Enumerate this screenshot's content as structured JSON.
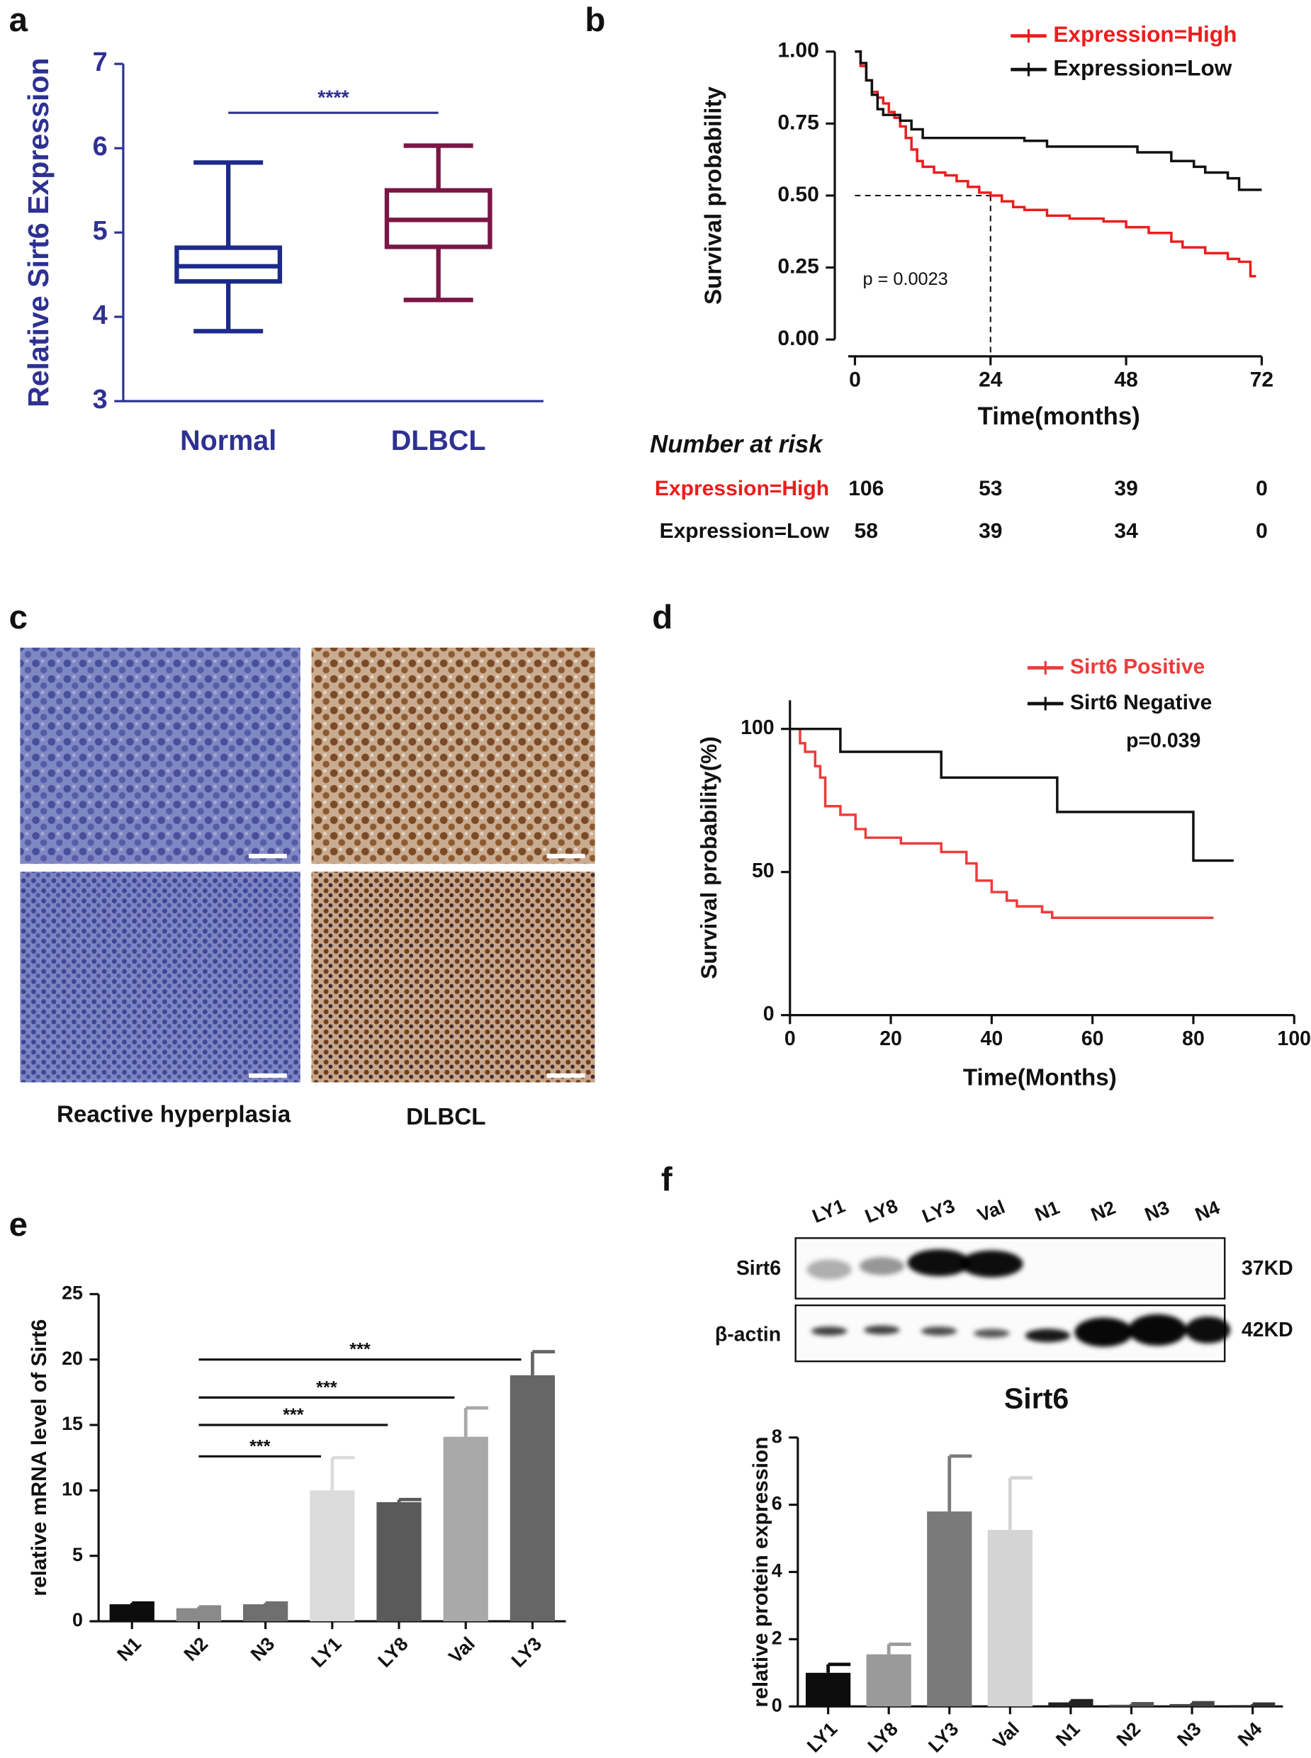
{
  "panel_labels": [
    "a",
    "b",
    "c",
    "d",
    "e",
    "f"
  ],
  "histology": {
    "labels": [
      "Reactive hyperplasia",
      "DLBCL"
    ]
  },
  "western_blot": {
    "lanes": [
      "LY1",
      "LY8",
      "LY3",
      "Val",
      "N1",
      "N2",
      "N3",
      "N4"
    ],
    "rows": [
      "Sirt6",
      "β-actin"
    ],
    "sizes": [
      "37KD",
      "42KD"
    ]
  },
  "chart_data": [
    {
      "type": "box",
      "ylabel": "Relative Sirt6 Expression",
      "categories": [
        "Normal",
        "DLBCL"
      ],
      "colors": [
        "#1c2a8a",
        "#7a1646"
      ],
      "axis_color": "#2e3192",
      "boxes": [
        {
          "min": 3.83,
          "q1": 4.42,
          "median": 4.6,
          "q3": 4.82,
          "max": 5.83
        },
        {
          "min": 4.2,
          "q1": 4.83,
          "median": 5.15,
          "q3": 5.5,
          "max": 6.03
        }
      ],
      "ylim": [
        3,
        7
      ],
      "yticks": [
        3,
        4,
        5,
        6,
        7
      ],
      "significance": [
        {
          "from": 0,
          "to": 1,
          "y": 6.42,
          "label": "****"
        }
      ]
    },
    {
      "type": "km",
      "ylabel": "Survival probability",
      "xlabel": "Time(months)",
      "xlim": [
        0,
        72
      ],
      "xticks": [
        0,
        24,
        48,
        72
      ],
      "ylim": [
        0,
        1
      ],
      "yticks": [
        {
          "value": 0,
          "label": "0.00"
        },
        {
          "value": 0.25,
          "label": "0.25"
        },
        {
          "value": 0.5,
          "label": "0.50"
        },
        {
          "value": 0.75,
          "label": "0.75"
        },
        {
          "value": 1,
          "label": "1.00"
        }
      ],
      "series": [
        {
          "name": "Expression=High",
          "color": "#ee1c1c",
          "x": [
            0,
            1,
            2,
            3,
            4,
            5,
            6,
            7,
            8,
            9,
            10,
            11,
            12,
            14,
            16,
            18,
            20,
            22,
            24,
            26,
            28,
            30,
            34,
            38,
            44,
            48,
            52,
            56,
            58,
            62,
            66,
            68,
            70,
            71
          ],
          "values": [
            1.0,
            0.95,
            0.9,
            0.86,
            0.84,
            0.82,
            0.79,
            0.77,
            0.74,
            0.7,
            0.66,
            0.62,
            0.6,
            0.58,
            0.57,
            0.55,
            0.53,
            0.51,
            0.5,
            0.48,
            0.46,
            0.45,
            0.43,
            0.42,
            0.41,
            0.39,
            0.37,
            0.34,
            0.32,
            0.3,
            0.28,
            0.27,
            0.22,
            0.22
          ]
        },
        {
          "name": "Expression=Low",
          "color": "#111111",
          "x": [
            0,
            1,
            2,
            3,
            4,
            5,
            8,
            10,
            12,
            30,
            34,
            50,
            56,
            60,
            62,
            66,
            68,
            72
          ],
          "values": [
            1.0,
            0.96,
            0.9,
            0.85,
            0.8,
            0.78,
            0.76,
            0.73,
            0.7,
            0.69,
            0.67,
            0.65,
            0.62,
            0.6,
            0.58,
            0.56,
            0.52,
            0.52
          ]
        }
      ],
      "median": {
        "x": 24,
        "y": 0.5
      },
      "annotation": "p = 0.0023",
      "risk_table": {
        "title": "Number at risk",
        "times": [
          0,
          24,
          48,
          72
        ],
        "rows": [
          {
            "name": "Expression=High",
            "color": "#ee1c1c",
            "values": [
              106,
              53,
              39,
              0
            ]
          },
          {
            "name": "Expression=Low",
            "color": "#111111",
            "values": [
              58,
              39,
              34,
              0
            ]
          }
        ]
      }
    },
    {
      "type": "km",
      "ylabel": "Survival probability(%)",
      "xlabel": "Time(Months)",
      "xlim": [
        0,
        100
      ],
      "xticks": [
        0,
        20,
        40,
        60,
        80,
        100
      ],
      "ylim": [
        0,
        110
      ],
      "yticks": [
        0,
        50,
        100
      ],
      "series": [
        {
          "name": "Sirt6 Positive",
          "color": "#ee3b3b",
          "x": [
            0,
            2,
            3,
            5,
            6,
            7,
            10,
            13,
            15,
            22,
            30,
            35,
            37,
            40,
            43,
            45,
            50,
            52,
            84
          ],
          "values": [
            100,
            95,
            92,
            87,
            83,
            73,
            70,
            65,
            62,
            60,
            57,
            53,
            47,
            43,
            40,
            38,
            36,
            34,
            34
          ]
        },
        {
          "name": "Sirt6 Negative",
          "color": "#111111",
          "x": [
            0,
            10,
            30,
            53,
            80,
            88
          ],
          "values": [
            100,
            92,
            83,
            71,
            54,
            54
          ]
        }
      ],
      "annotation": "p=0.039"
    },
    {
      "type": "bar",
      "ylabel": "relative mRNA level of Sirt6",
      "categories": [
        "N1",
        "N2",
        "N3",
        "LY1",
        "LY8",
        "Val",
        "LY3"
      ],
      "values": [
        1.3,
        1.0,
        1.3,
        10.0,
        9.1,
        14.1,
        18.8
      ],
      "errors": [
        0.1,
        0.1,
        0.1,
        2.5,
        0.2,
        2.2,
        1.8
      ],
      "colors": [
        "#0d0d0d",
        "#8a8a8a",
        "#6f6f6f",
        "#dcdcdc",
        "#5a5a5a",
        "#a9a9a9",
        "#666666"
      ],
      "ylim": [
        0,
        25
      ],
      "yticks": [
        0,
        5,
        10,
        15,
        20,
        25
      ],
      "significance": [
        {
          "from": 1,
          "to": 3,
          "y": 12.6,
          "label": "***"
        },
        {
          "from": 1,
          "to": 4,
          "y": 15.0,
          "label": "***"
        },
        {
          "from": 1,
          "to": 5,
          "y": 17.1,
          "label": "***"
        },
        {
          "from": 1,
          "to": 6,
          "y": 20.0,
          "label": "***"
        }
      ]
    },
    {
      "type": "bar",
      "title": "Sirt6",
      "ylabel": "relative protein expression",
      "categories": [
        "LY1",
        "LY8",
        "LY3",
        "Val",
        "N1",
        "N2",
        "N3",
        "N4"
      ],
      "values": [
        1.0,
        1.55,
        5.8,
        5.25,
        0.12,
        0.05,
        0.07,
        0.04
      ],
      "errors": [
        0.25,
        0.3,
        1.65,
        1.55,
        0.05,
        0.03,
        0.04,
        0.03
      ],
      "colors": [
        "#0d0d0d",
        "#9a9a9a",
        "#7a7a7a",
        "#d4d4d4",
        "#222222",
        "#555555",
        "#444444",
        "#333333"
      ],
      "ylim": [
        0,
        8
      ],
      "yticks": [
        0,
        2,
        4,
        6,
        8
      ]
    }
  ]
}
